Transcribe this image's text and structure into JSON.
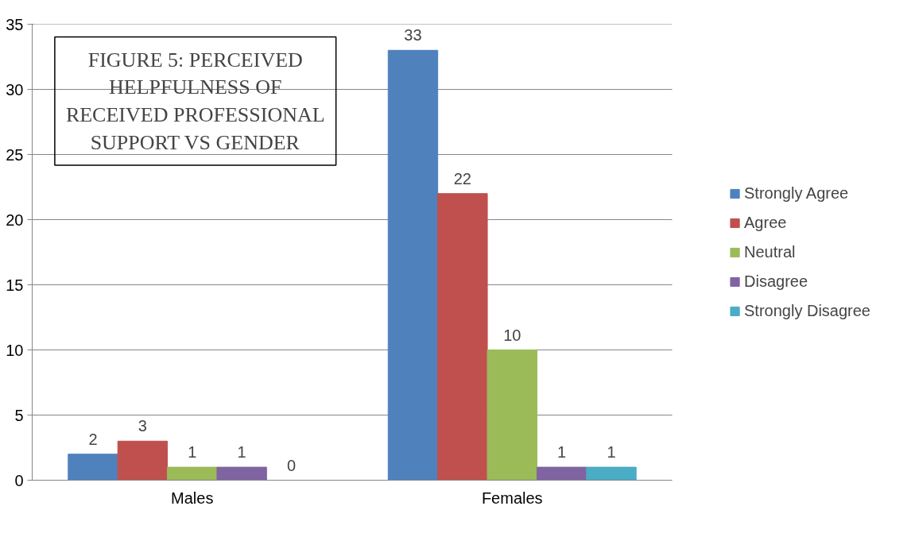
{
  "chart_data": {
    "type": "bar",
    "title": "FIGURE 5: PERCEIVED HELPFULNESS OF RECEIVED PROFESSIONAL SUPPORT VS GENDER",
    "categories": [
      "Males",
      "Females"
    ],
    "series": [
      {
        "name": "Strongly Agree",
        "color": "#4f81bd",
        "values": [
          2,
          33
        ]
      },
      {
        "name": "Agree",
        "color": "#c0504d",
        "values": [
          3,
          22
        ]
      },
      {
        "name": "Neutral",
        "color": "#9bbb59",
        "values": [
          1,
          10
        ]
      },
      {
        "name": "Disagree",
        "color": "#8064a2",
        "values": [
          1,
          1
        ]
      },
      {
        "name": "Strongly Disagree",
        "color": "#4bacc6",
        "values": [
          0,
          1
        ]
      }
    ],
    "ylim": [
      0,
      35
    ],
    "yticks": [
      0,
      5,
      10,
      15,
      20,
      25,
      30,
      35
    ],
    "grid": "y",
    "legend": "right",
    "data_labels": true
  }
}
